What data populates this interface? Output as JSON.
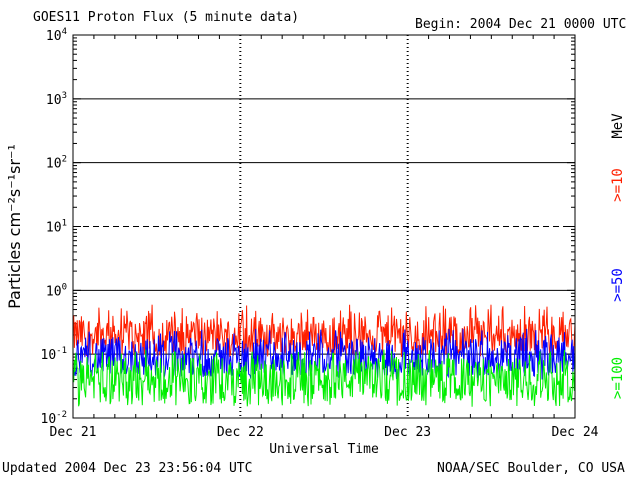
{
  "header": {
    "title": "GOES11 Proton Flux (5 minute data)",
    "begin": "Begin: 2004 Dec 21 0000 UTC"
  },
  "footer": {
    "updated": "Updated 2004 Dec 23 23:56:04 UTC",
    "credit": "NOAA/SEC Boulder, CO USA"
  },
  "colors": {
    "ge10": "#ff2000",
    "ge50": "#0000ff",
    "ge100": "#00ee00",
    "axis": "#000000",
    "background": "#ffffff"
  },
  "chart_data": {
    "type": "line",
    "title": "GOES11 Proton Flux (5 minute data)",
    "xlabel": "Universal Time",
    "ylabel": "Particles cm⁻²s⁻¹sr⁻¹",
    "yscale": "log",
    "ylim": [
      0.01,
      10000
    ],
    "y_ticks": [
      {
        "value": 0.01,
        "mantissa": "10",
        "exp": "-2"
      },
      {
        "value": 0.1,
        "mantissa": "10",
        "exp": "-1"
      },
      {
        "value": 1,
        "mantissa": "10",
        "exp": "0"
      },
      {
        "value": 10,
        "mantissa": "10",
        "exp": "1"
      },
      {
        "value": 100,
        "mantissa": "10",
        "exp": "2"
      },
      {
        "value": 1000,
        "mantissa": "10",
        "exp": "3"
      },
      {
        "value": 10000,
        "mantissa": "10",
        "exp": "4"
      }
    ],
    "x_ticks": [
      "Dec 21",
      "Dec 22",
      "Dec 23",
      "Dec 24"
    ],
    "grid": true,
    "legend_unit": "MeV",
    "series": [
      {
        "name": ">=10",
        "color": "#ff2000",
        "baseline": 0.2,
        "min": 0.09,
        "max": 0.6
      },
      {
        "name": ">=50",
        "color": "#0000ff",
        "baseline": 0.09,
        "min": 0.04,
        "max": 0.25
      },
      {
        "name": ">=100",
        "color": "#00ee00",
        "baseline": 0.04,
        "min": 0.015,
        "max": 0.12
      }
    ]
  }
}
